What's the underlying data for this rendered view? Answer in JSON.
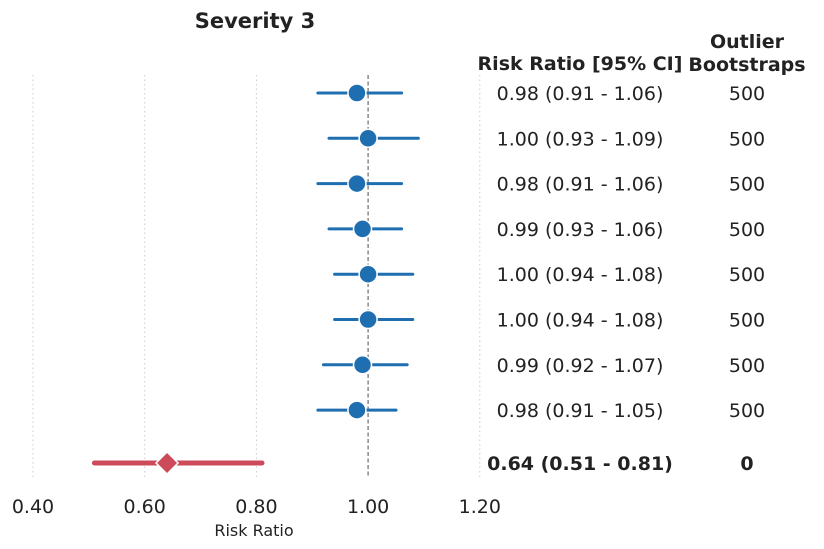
{
  "chart_data": {
    "type": "forest",
    "title": "Severity 3",
    "xlabel": "Risk Ratio",
    "xlim": [
      0.37,
      1.2
    ],
    "xticks": [
      "0.40",
      "0.60",
      "0.80",
      "1.00",
      "1.20"
    ],
    "xtick_values": [
      0.4,
      0.6,
      0.8,
      1.0,
      1.2
    ],
    "reference_line": 1.0,
    "grid": "vertical dotted",
    "columns": [
      "Risk Ratio [95% CI]",
      "Outlier\nBootstraps"
    ],
    "column_headers": {
      "ci": "Risk Ratio [95% CI]",
      "outlier_line1": "Outlier",
      "outlier_line2": "Bootstraps"
    },
    "rows": [
      {
        "estimate": 0.98,
        "lower": 0.91,
        "upper": 1.06,
        "ci_label": "0.98 (0.91 - 1.06)",
        "outlier": "500",
        "summary": false
      },
      {
        "estimate": 1.0,
        "lower": 0.93,
        "upper": 1.09,
        "ci_label": "1.00 (0.93 - 1.09)",
        "outlier": "500",
        "summary": false
      },
      {
        "estimate": 0.98,
        "lower": 0.91,
        "upper": 1.06,
        "ci_label": "0.98 (0.91 - 1.06)",
        "outlier": "500",
        "summary": false
      },
      {
        "estimate": 0.99,
        "lower": 0.93,
        "upper": 1.06,
        "ci_label": "0.99 (0.93 - 1.06)",
        "outlier": "500",
        "summary": false
      },
      {
        "estimate": 1.0,
        "lower": 0.94,
        "upper": 1.08,
        "ci_label": "1.00 (0.94 - 1.08)",
        "outlier": "500",
        "summary": false
      },
      {
        "estimate": 1.0,
        "lower": 0.94,
        "upper": 1.08,
        "ci_label": "1.00 (0.94 - 1.08)",
        "outlier": "500",
        "summary": false
      },
      {
        "estimate": 0.99,
        "lower": 0.92,
        "upper": 1.07,
        "ci_label": "0.99 (0.92 - 1.07)",
        "outlier": "500",
        "summary": false
      },
      {
        "estimate": 0.98,
        "lower": 0.91,
        "upper": 1.05,
        "ci_label": "0.98 (0.91 - 1.05)",
        "outlier": "500",
        "summary": false
      },
      {
        "estimate": 0.64,
        "lower": 0.51,
        "upper": 0.81,
        "ci_label": "0.64 (0.51 - 0.81)",
        "outlier": "0",
        "summary": true
      }
    ],
    "colors": {
      "point": "#1f6fb0",
      "summary": "#cc4a5a",
      "reference": "#777777",
      "grid": "#cccccc"
    }
  }
}
